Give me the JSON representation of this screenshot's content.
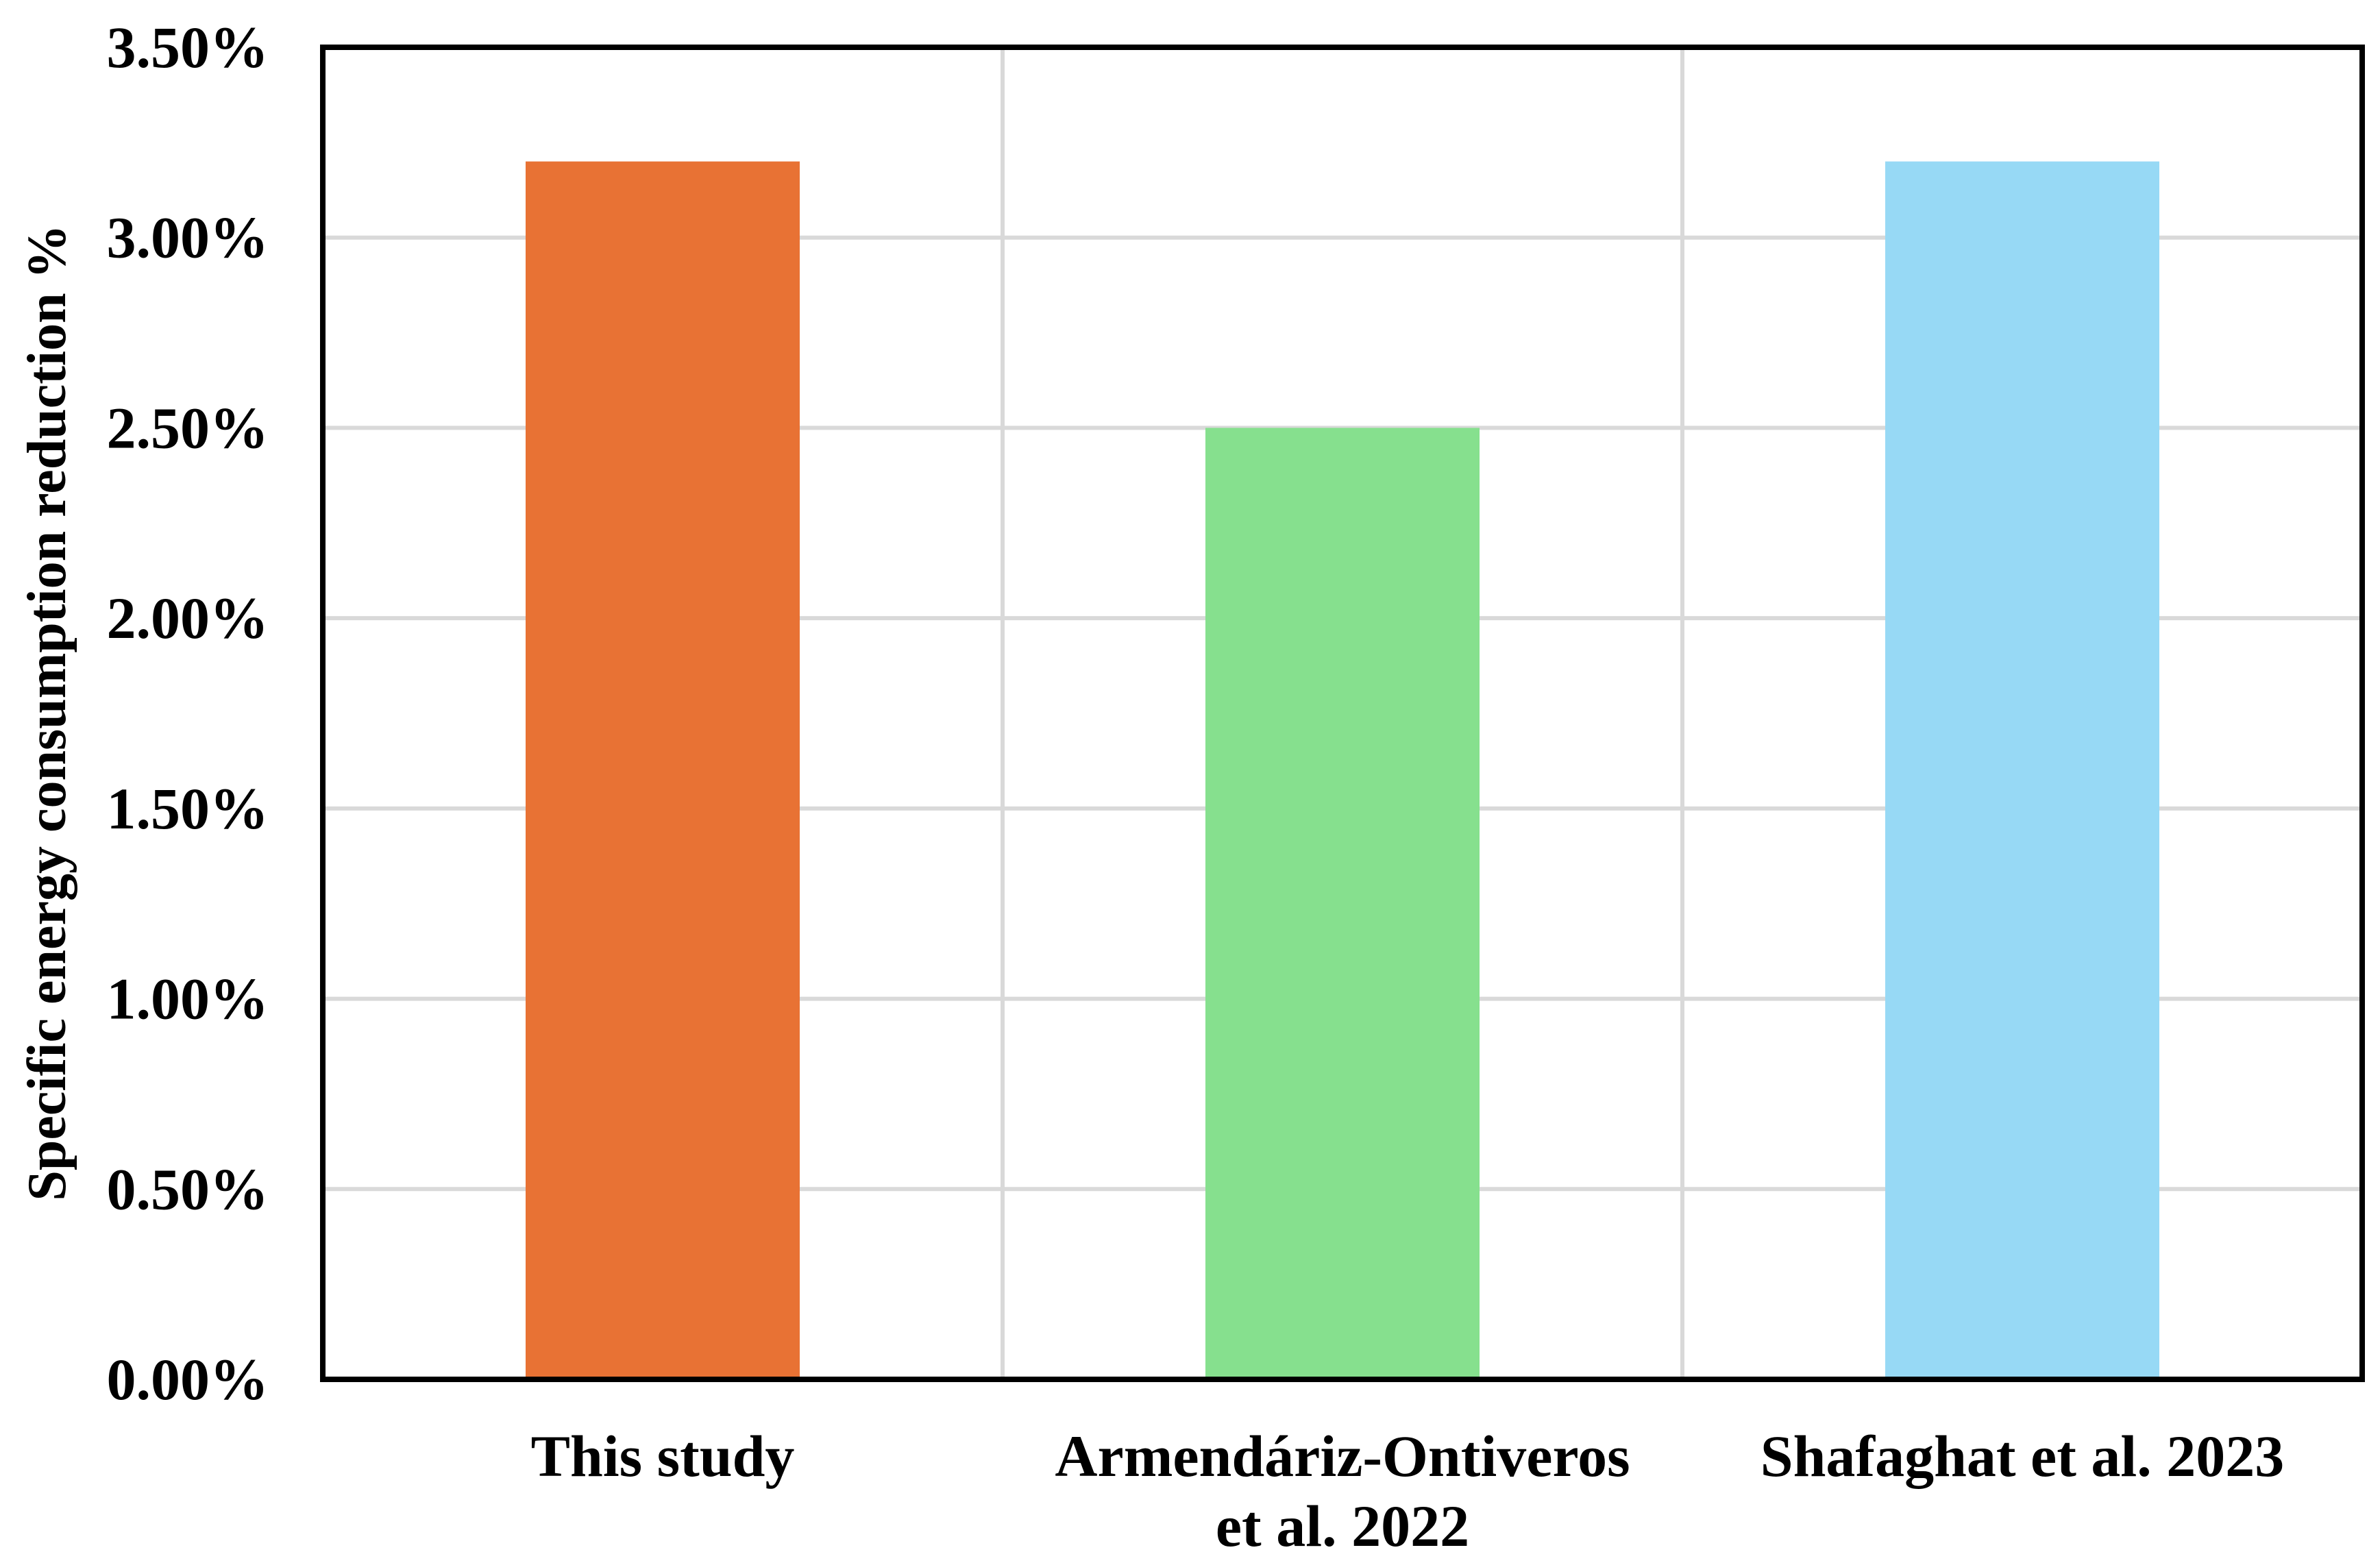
{
  "chart_data": {
    "type": "bar",
    "title": "",
    "xlabel": "",
    "ylabel": "Specific energy consumption reduction %",
    "ylim": [
      0,
      3.5
    ],
    "y_ticks": [
      "0.00%",
      "0.50%",
      "1.00%",
      "1.50%",
      "2.00%",
      "2.50%",
      "3.00%",
      "3.50%"
    ],
    "y_tick_values": [
      0,
      0.5,
      1.0,
      1.5,
      2.0,
      2.5,
      3.0,
      3.5
    ],
    "grid": true,
    "legend": "none",
    "categories": [
      [
        "This study"
      ],
      [
        "Armendáriz-Ontiveros",
        "et al. 2022"
      ],
      [
        "Shafaghat et al. 2023"
      ]
    ],
    "values": [
      3.2,
      2.5,
      3.2
    ],
    "unit": "%",
    "colors": [
      "#E87234",
      "#86E08E",
      "#97D9F5"
    ]
  }
}
